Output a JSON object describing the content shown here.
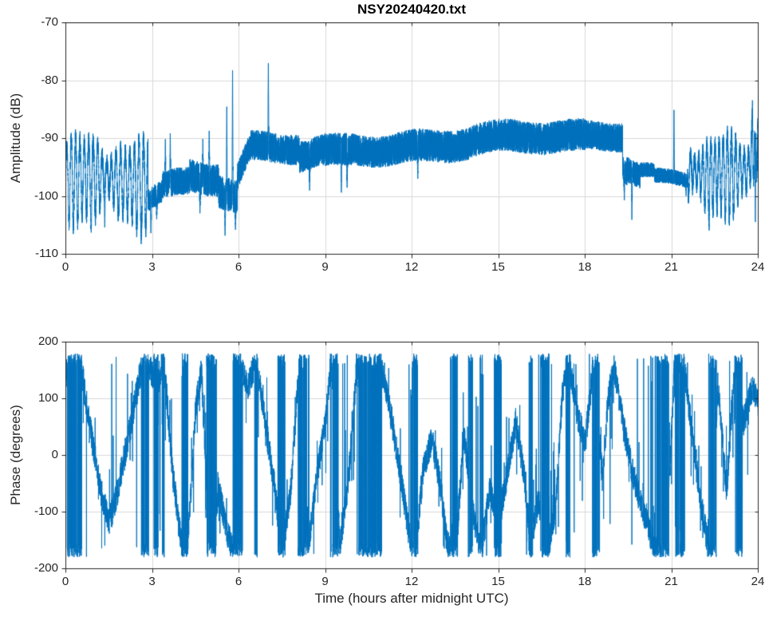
{
  "figure": {
    "title": "NSY20240420.txt"
  },
  "labels": {
    "xlabel": "Time (hours after midnight UTC)",
    "top_ylabel": "Amplitude (dB)",
    "bottom_ylabel": "Phase (degrees)"
  },
  "colors": {
    "line": "#0072BD",
    "axis": "#262626",
    "grid": "#d9d9d9",
    "background": "#ffffff"
  },
  "chart_data": [
    {
      "type": "line",
      "title": "NSY20240420.txt",
      "xlabel": "",
      "ylabel": "Amplitude (dB)",
      "xlim": [
        0,
        24
      ],
      "ylim": [
        -110,
        -70
      ],
      "xticks": [
        0,
        3,
        6,
        9,
        12,
        15,
        18,
        21,
        24
      ],
      "yticks": [
        -110,
        -100,
        -90,
        -80,
        -70
      ],
      "grid": true,
      "legend": null,
      "line_color": "#0072BD",
      "seed": 1337,
      "sample_step": 0.001666,
      "description": "VLF signal amplitude: periodic nighttime fading 0-2.8h and 21.6-24h (swings -89 to -106 dB), disturbed transition 3-6h with spikes to -77.5 dB at 5.78h, smooth daytime band ~-92 to -89 dB from 6.4h to 19.3h with spike to -76.5 dB at 7.02h, sunset drop to -104 dB near 19.6h, quiet -97 dB until 21.5h with spike to -85 dB at 21.08h",
      "model": {
        "segments": [
          {
            "t0": 0.0,
            "t1": 2.85,
            "m0": -96.3,
            "m1": -96.8,
            "noise": 1.4,
            "osc_amp": 6.2,
            "osc_per": 0.155,
            "deep": 1.45
          },
          {
            "t0": 2.85,
            "t1": 3.35,
            "m0": -101.0,
            "m1": -99.5,
            "noise": 2.0,
            "osc_amp": 0,
            "osc_per": 1,
            "deep": 1
          },
          {
            "t0": 3.35,
            "t1": 4.3,
            "m0": -98.5,
            "m1": -97.0,
            "noise": 2.4,
            "osc_amp": 0,
            "osc_per": 1,
            "deep": 1
          },
          {
            "t0": 4.3,
            "t1": 5.3,
            "m0": -96.0,
            "m1": -96.5,
            "noise": 2.8,
            "osc_amp": 0,
            "osc_per": 1,
            "deep": 1
          },
          {
            "t0": 5.3,
            "t1": 5.95,
            "m0": -98.5,
            "m1": -100.0,
            "noise": 2.9,
            "osc_amp": 0,
            "osc_per": 1,
            "deep": 1
          },
          {
            "t0": 5.95,
            "t1": 6.4,
            "m0": -96.5,
            "m1": -91.5,
            "noise": 2.3,
            "osc_amp": 0,
            "osc_per": 1,
            "deep": 1
          },
          {
            "t0": 6.4,
            "t1": 8.1,
            "m0": -91.4,
            "m1": -91.9,
            "noise": 2.6,
            "osc_amp": 0,
            "osc_per": 1,
            "deep": 1
          },
          {
            "t0": 8.1,
            "t1": 9.0,
            "m0": -93.2,
            "m1": -92.6,
            "noise": 2.7,
            "osc_amp": 0,
            "osc_per": 1,
            "deep": 1
          },
          {
            "t0": 9.0,
            "t1": 9.9,
            "m0": -92.8,
            "m1": -92.3,
            "noise": 2.8,
            "osc_amp": 0,
            "osc_per": 1,
            "deep": 1
          },
          {
            "t0": 9.9,
            "t1": 11.5,
            "m0": -92.0,
            "m1": -91.6,
            "noise": 2.7,
            "osc_amp": 0,
            "osc_per": 1,
            "deep": 1
          },
          {
            "t0": 11.5,
            "t1": 14.0,
            "m0": -91.4,
            "m1": -90.6,
            "noise": 2.8,
            "osc_amp": 0,
            "osc_per": 1,
            "deep": 1
          },
          {
            "t0": 14.0,
            "t1": 18.0,
            "m0": -90.4,
            "m1": -89.6,
            "noise": 2.8,
            "osc_amp": 0,
            "osc_per": 1,
            "deep": 1
          },
          {
            "t0": 18.0,
            "t1": 19.3,
            "m0": -89.5,
            "m1": -89.0,
            "noise": 2.5,
            "osc_amp": 0,
            "osc_per": 1,
            "deep": 1
          },
          {
            "t0": 19.3,
            "t1": 19.45,
            "m0": -94.0,
            "m1": -95.5,
            "noise": 2.0,
            "osc_amp": 0,
            "osc_per": 1,
            "deep": 1
          },
          {
            "t0": 19.45,
            "t1": 19.9,
            "m0": -94.5,
            "m1": -96.0,
            "noise": 2.2,
            "osc_amp": 0,
            "osc_per": 1,
            "deep": 1
          },
          {
            "t0": 19.9,
            "t1": 20.4,
            "m0": -95.0,
            "m1": -95.6,
            "noise": 1.3,
            "osc_amp": 0,
            "osc_per": 1,
            "deep": 1
          },
          {
            "t0": 20.4,
            "t1": 21.55,
            "m0": -96.6,
            "m1": -97.4,
            "noise": 1.3,
            "osc_amp": 0,
            "osc_per": 1,
            "deep": 1
          },
          {
            "t0": 21.55,
            "t1": 23.7,
            "m0": -95.3,
            "m1": -95.8,
            "noise": 1.4,
            "osc_amp": 5.6,
            "osc_per": 0.145,
            "deep": 1.5
          },
          {
            "t0": 23.7,
            "t1": 24.0,
            "m0": -93.5,
            "m1": -90.5,
            "noise": 1.8,
            "osc_amp": 6.5,
            "osc_per": 0.11,
            "deep": 1.3
          }
        ],
        "spikes": [
          {
            "t": 3.45,
            "v": -90.0
          },
          {
            "t": 3.62,
            "v": -89.0
          },
          {
            "t": 4.75,
            "v": -90.0
          },
          {
            "t": 4.97,
            "v": -88.5
          },
          {
            "t": 5.58,
            "v": -84.0
          },
          {
            "t": 5.78,
            "v": -77.5
          },
          {
            "t": 7.02,
            "v": -76.5
          },
          {
            "t": 21.08,
            "v": -85.0
          },
          {
            "t": 23.8,
            "v": -83.2
          }
        ],
        "dips": [
          {
            "t": 0.88,
            "v": -106.3
          },
          {
            "t": 1.35,
            "v": -105.5
          },
          {
            "t": 2.95,
            "v": -106.5
          },
          {
            "t": 3.15,
            "v": -104.0
          },
          {
            "t": 4.65,
            "v": -103.0
          },
          {
            "t": 5.52,
            "v": -107.0
          },
          {
            "t": 5.88,
            "v": -106.0
          },
          {
            "t": 8.45,
            "v": -99.0
          },
          {
            "t": 9.55,
            "v": -99.5
          },
          {
            "t": 9.75,
            "v": -98.6
          },
          {
            "t": 12.2,
            "v": -97.0
          },
          {
            "t": 19.36,
            "v": -100.8
          },
          {
            "t": 19.62,
            "v": -104.2
          },
          {
            "t": 21.5,
            "v": -100.0
          },
          {
            "t": 22.3,
            "v": -106.0
          },
          {
            "t": 23.9,
            "v": -104.8
          }
        ],
        "spike_width": 0.018
      }
    },
    {
      "type": "line",
      "title": "",
      "xlabel": "Time (hours after midnight UTC)",
      "ylabel": "Phase (degrees)",
      "xlim": [
        0,
        24
      ],
      "ylim": [
        -200,
        200
      ],
      "xticks": [
        0,
        3,
        6,
        9,
        12,
        15,
        18,
        21,
        24
      ],
      "yticks": [
        -200,
        -100,
        0,
        100,
        200
      ],
      "grid": true,
      "legend": null,
      "line_color": "#0072BD",
      "seed": 9021,
      "sample_step": 0.004,
      "description": "Wrapped phase (clipped at +/-180 deg) random-walk with frequent full-height wrap lines; slow ramps between anchors below",
      "model": {
        "wrap": 180,
        "noise": 26,
        "jump_prob": 0.05,
        "jump_mag": 120,
        "anchors": [
          [
            0,
            150
          ],
          [
            0.5,
            170
          ],
          [
            0.8,
            60
          ],
          [
            1.2,
            -60
          ],
          [
            1.5,
            -120
          ],
          [
            1.8,
            -60
          ],
          [
            2.2,
            40
          ],
          [
            2.6,
            150
          ],
          [
            2.8,
            180
          ],
          [
            3.1,
            120
          ],
          [
            3.4,
            170
          ],
          [
            3.7,
            -30
          ],
          [
            4.0,
            -150
          ],
          [
            4.2,
            -180
          ],
          [
            4.5,
            80
          ],
          [
            4.7,
            150
          ],
          [
            5.0,
            -170
          ],
          [
            5.3,
            -60
          ],
          [
            5.6,
            -140
          ],
          [
            5.9,
            -180
          ],
          [
            6.1,
            150
          ],
          [
            6.3,
            120
          ],
          [
            6.6,
            170
          ],
          [
            6.9,
            60
          ],
          [
            7.2,
            -40
          ],
          [
            7.5,
            -170
          ],
          [
            7.8,
            -60
          ],
          [
            8.1,
            170
          ],
          [
            8.4,
            -170
          ],
          [
            8.7,
            -40
          ],
          [
            9.0,
            60
          ],
          [
            9.2,
            170
          ],
          [
            9.5,
            -160
          ],
          [
            9.8,
            -40
          ],
          [
            10.1,
            170
          ],
          [
            10.5,
            -170
          ],
          [
            10.8,
            170
          ],
          [
            11.1,
            120
          ],
          [
            11.5,
            0
          ],
          [
            11.9,
            -140
          ],
          [
            12.1,
            -180
          ],
          [
            12.4,
            -20
          ],
          [
            12.7,
            30
          ],
          [
            13.0,
            -60
          ],
          [
            13.2,
            -150
          ],
          [
            13.5,
            -180
          ],
          [
            13.8,
            40
          ],
          [
            14.1,
            -100
          ],
          [
            14.4,
            -170
          ],
          [
            14.7,
            -60
          ],
          [
            15.0,
            -120
          ],
          [
            15.3,
            -30
          ],
          [
            15.6,
            60
          ],
          [
            15.9,
            -40
          ],
          [
            16.1,
            -150
          ],
          [
            16.4,
            -80
          ],
          [
            16.7,
            -170
          ],
          [
            17.0,
            -80
          ],
          [
            17.2,
            100
          ],
          [
            17.4,
            180
          ],
          [
            17.7,
            80
          ],
          [
            18.0,
            20
          ],
          [
            18.3,
            170
          ],
          [
            18.6,
            -40
          ],
          [
            18.8,
            100
          ],
          [
            19.0,
            160
          ],
          [
            19.3,
            60
          ],
          [
            19.6,
            -20
          ],
          [
            19.9,
            -80
          ],
          [
            20.2,
            -130
          ],
          [
            20.5,
            -170
          ],
          [
            20.8,
            -180
          ],
          [
            21.1,
            160
          ],
          [
            21.4,
            170
          ],
          [
            21.7,
            40
          ],
          [
            22.0,
            -80
          ],
          [
            22.3,
            -170
          ],
          [
            22.6,
            120
          ],
          [
            22.9,
            -60
          ],
          [
            23.2,
            170
          ],
          [
            23.5,
            60
          ],
          [
            23.8,
            120
          ],
          [
            24,
            90
          ]
        ],
        "bursts": [
          [
            0.05,
            0.55
          ],
          [
            2.62,
            2.8
          ],
          [
            3.05,
            3.2
          ],
          [
            4.05,
            4.22
          ],
          [
            4.88,
            5.22
          ],
          [
            5.85,
            6.12
          ],
          [
            7.35,
            7.6
          ],
          [
            8.05,
            8.35
          ],
          [
            9.25,
            9.45
          ],
          [
            10.15,
            10.95
          ],
          [
            12.0,
            12.2
          ],
          [
            13.45,
            13.58
          ],
          [
            13.95,
            14.1
          ],
          [
            14.85,
            15.1
          ],
          [
            16.05,
            16.18
          ],
          [
            16.45,
            16.75
          ],
          [
            18.25,
            18.5
          ],
          [
            20.62,
            20.9
          ],
          [
            21.3,
            21.45
          ],
          [
            22.3,
            22.55
          ],
          [
            23.25,
            23.45
          ]
        ]
      }
    }
  ]
}
